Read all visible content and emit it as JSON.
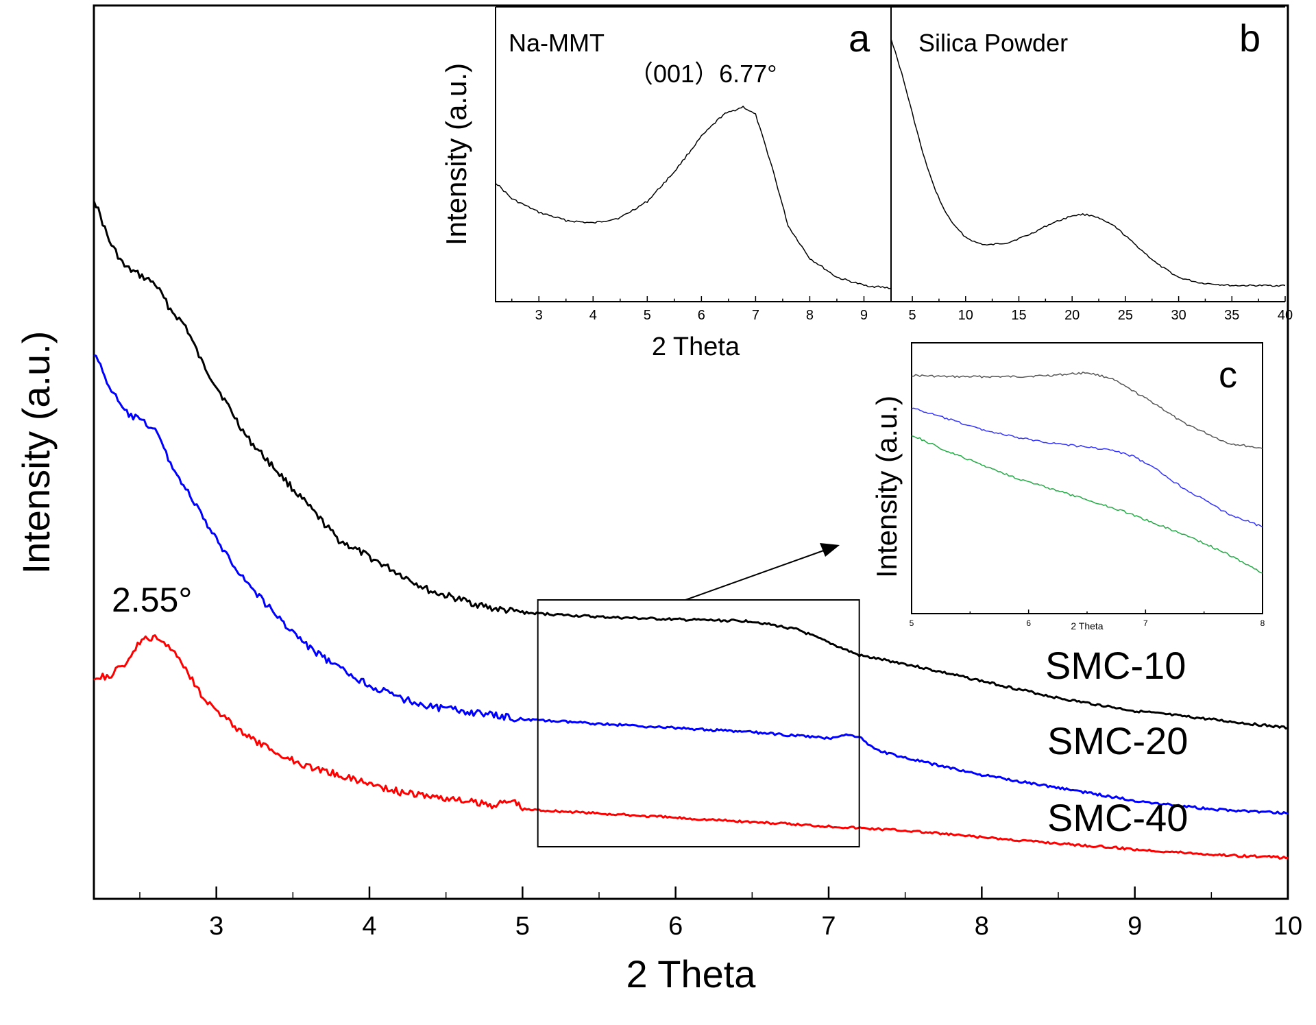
{
  "chart_data": [
    {
      "id": "main",
      "type": "line",
      "title": "",
      "xlabel": "2 Theta",
      "ylabel": "Intensity (a.u.)",
      "xlim": [
        2.2,
        10
      ],
      "ylim": [
        0,
        100
      ],
      "xticks": [
        3,
        4,
        5,
        6,
        7,
        8,
        9,
        10
      ],
      "xtick_labels": [
        "3",
        "4",
        "5",
        "6",
        "7",
        "8",
        "9",
        "10"
      ],
      "grid": false,
      "series": [
        {
          "name": "SMC-10",
          "color": "#000000",
          "x": [
            2.2,
            2.3,
            2.4,
            2.5,
            2.6,
            2.7,
            2.8,
            2.9,
            3.0,
            3.2,
            3.4,
            3.6,
            3.8,
            4.0,
            4.2,
            4.4,
            4.6,
            4.8,
            5.0,
            5.5,
            6.0,
            6.5,
            6.8,
            7.0,
            7.2,
            7.5,
            8.0,
            8.5,
            9.0,
            9.5,
            10.0
          ],
          "y": [
            82,
            77,
            74,
            73,
            72,
            69,
            67,
            63,
            60,
            54,
            50,
            46,
            42,
            40,
            38,
            36,
            35,
            34,
            33.5,
            33,
            32.7,
            32.5,
            31.5,
            30,
            28.5,
            27.5,
            25.5,
            23.5,
            22,
            21,
            20
          ]
        },
        {
          "name": "SMC-20",
          "color": "#0000ff",
          "x": [
            2.2,
            2.3,
            2.4,
            2.5,
            2.6,
            2.7,
            2.8,
            2.9,
            3.0,
            3.2,
            3.4,
            3.6,
            3.8,
            4.0,
            4.2,
            4.4,
            4.6,
            4.8,
            5.0,
            5.5,
            6.0,
            6.5,
            7.0,
            7.1,
            7.2,
            7.3,
            7.5,
            8.0,
            8.5,
            9.0,
            9.5,
            10.0
          ],
          "y": [
            64,
            60,
            57,
            56,
            55,
            51,
            48,
            45,
            42,
            37,
            33,
            29.5,
            27,
            25,
            23.5,
            22.5,
            22,
            21.5,
            21,
            20.5,
            20,
            19.5,
            18.8,
            19.2,
            19,
            17.5,
            16.5,
            14.5,
            13,
            11.5,
            10.5,
            10
          ]
        },
        {
          "name": "SMC-40",
          "color": "#ff0000",
          "x": [
            2.2,
            2.3,
            2.4,
            2.5,
            2.55,
            2.6,
            2.7,
            2.8,
            2.9,
            3.0,
            3.2,
            3.4,
            3.6,
            3.8,
            4.0,
            4.2,
            4.4,
            4.6,
            4.8,
            4.95,
            5.0,
            5.5,
            6.0,
            6.5,
            7.0,
            7.5,
            8.0,
            8.5,
            9.0,
            9.5,
            10.0
          ],
          "y": [
            26,
            26,
            27.5,
            30,
            30.5,
            30.5,
            29.5,
            27,
            24,
            22,
            19,
            17,
            15.5,
            14.5,
            13.5,
            12.5,
            12,
            11.5,
            11,
            11.5,
            10.5,
            10,
            9.5,
            9,
            8.5,
            8,
            7.2,
            6.5,
            5.8,
            5.2,
            4.8
          ]
        }
      ],
      "annotations": [
        {
          "text": "2.55°",
          "x": 2.55
        },
        {
          "text": "SMC-10",
          "series": "SMC-10"
        },
        {
          "text": "SMC-20",
          "series": "SMC-20"
        },
        {
          "text": "SMC-40",
          "series": "SMC-40"
        }
      ],
      "zoom_box": {
        "xlim": [
          5.1,
          7.2
        ]
      }
    },
    {
      "id": "a",
      "type": "line",
      "panel_letter": "a",
      "title": "Na-MMT",
      "xlabel": "2 Theta",
      "ylabel": "Intensity (a.u.)",
      "xlim": [
        2.2,
        9.5
      ],
      "ylim": [
        0,
        100
      ],
      "xticks": [
        3,
        4,
        5,
        6,
        7,
        8,
        9
      ],
      "xtick_labels": [
        "3",
        "4",
        "5",
        "6",
        "7",
        "8",
        "9"
      ],
      "peak_label": "（001）6.77°",
      "series": [
        {
          "name": "Na-MMT",
          "color": "#000000",
          "x": [
            2.2,
            2.5,
            3.0,
            3.5,
            4.0,
            4.5,
            5.0,
            5.5,
            6.0,
            6.4,
            6.77,
            7.0,
            7.3,
            7.6,
            8.0,
            8.5,
            9.0,
            9.5
          ],
          "y": [
            44,
            38,
            33,
            30,
            29,
            31,
            37,
            48,
            61,
            69,
            72,
            69,
            50,
            28,
            16,
            9,
            6,
            5
          ]
        }
      ]
    },
    {
      "id": "b",
      "type": "line",
      "panel_letter": "b",
      "title": "Silica Powder",
      "xlabel": "",
      "ylabel": "",
      "xlim": [
        3,
        40
      ],
      "ylim": [
        0,
        100
      ],
      "xticks": [
        5,
        10,
        15,
        20,
        25,
        30,
        35,
        40
      ],
      "xtick_labels": [
        "5",
        "10",
        "15",
        "20",
        "25",
        "30",
        "35",
        "40"
      ],
      "series": [
        {
          "name": "Silica Powder",
          "color": "#000000",
          "x": [
            3,
            4,
            5,
            6,
            7,
            8,
            9,
            10,
            11,
            12,
            14,
            16,
            18,
            20,
            21,
            22,
            24,
            26,
            28,
            30,
            32,
            35,
            38,
            40
          ],
          "y": [
            98,
            85,
            70,
            55,
            43,
            34,
            28,
            24,
            22,
            21,
            22,
            25,
            29,
            32,
            32.5,
            32,
            28,
            21,
            14,
            9,
            7,
            6,
            6,
            6
          ]
        }
      ]
    },
    {
      "id": "c",
      "type": "line",
      "panel_letter": "c",
      "title": "",
      "xlabel": "2 Theta",
      "ylabel": "Intensity (a.u.)",
      "xlim": [
        5,
        8
      ],
      "ylim": [
        0,
        100
      ],
      "xticks": [
        5,
        6,
        7,
        8
      ],
      "xtick_labels": [
        "5",
        "6",
        "7",
        "8"
      ],
      "series": [
        {
          "name": "SMC-10",
          "color": "#555555",
          "x": [
            5.0,
            5.3,
            5.6,
            5.9,
            6.2,
            6.5,
            6.7,
            6.9,
            7.1,
            7.3,
            7.5,
            7.7,
            8.0
          ],
          "y": [
            88,
            87.5,
            87.5,
            87.5,
            88,
            89,
            87,
            82,
            77,
            71,
            67,
            63,
            61
          ]
        },
        {
          "name": "SMC-20",
          "color": "#3333ff",
          "x": [
            5.0,
            5.3,
            5.6,
            5.9,
            6.2,
            6.5,
            6.7,
            6.9,
            7.1,
            7.3,
            7.5,
            7.7,
            8.0
          ],
          "y": [
            76,
            72,
            68,
            65,
            63,
            61.5,
            60.5,
            58,
            53,
            47,
            42,
            37,
            32
          ]
        },
        {
          "name": "SMC-40",
          "color": "#22aa44",
          "x": [
            5.0,
            5.3,
            5.6,
            5.9,
            6.2,
            6.5,
            6.8,
            7.1,
            7.4,
            7.7,
            8.0
          ],
          "y": [
            66,
            60,
            55,
            50,
            46,
            42,
            38,
            33,
            28,
            22,
            15
          ]
        }
      ]
    }
  ]
}
